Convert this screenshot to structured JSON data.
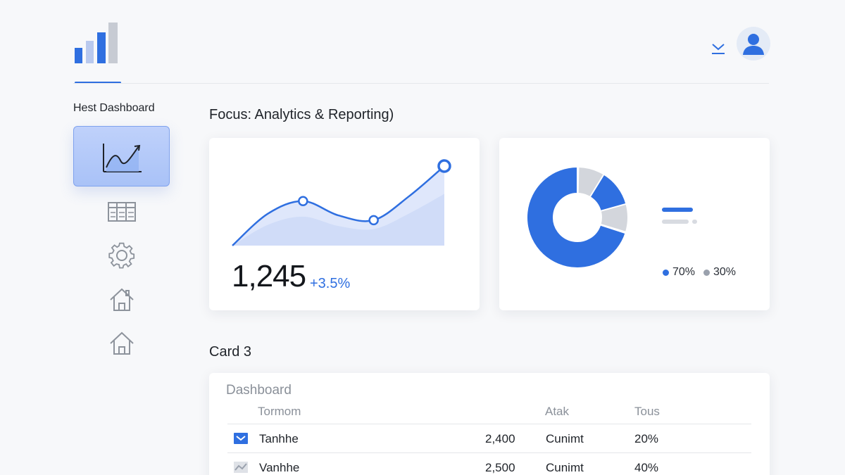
{
  "header": {
    "logo_icon": "bar-chart-logo-icon",
    "dropdown_icon": "chevron-down-icon",
    "avatar_icon": "user-avatar-icon",
    "accent_color": "#2f6fe0"
  },
  "sidebar": {
    "title": "Hest Dashboard",
    "items": [
      {
        "icon": "analytics-chart-icon",
        "active": true
      },
      {
        "icon": "table-grid-icon",
        "active": false
      },
      {
        "icon": "gear-icon",
        "active": false
      },
      {
        "icon": "home-icon",
        "active": false
      },
      {
        "icon": "home-icon",
        "active": false
      }
    ]
  },
  "main": {
    "section_title": "Focus: Analytics & Reporting)",
    "kpi_card": {
      "value": "1,245",
      "change": "+3.5%"
    },
    "donut_card": {
      "legend": [
        {
          "label": "70%",
          "color": "#2f6fe0"
        },
        {
          "label": "30%",
          "color": "#9aa1ad"
        }
      ]
    },
    "card3": {
      "title": "Card 3",
      "table_title": "Dashboard",
      "columns": [
        "Tormom",
        "Atak",
        "Tous"
      ],
      "rows": [
        {
          "icon": "checkbox-checked-icon",
          "name": "Tanhhe",
          "value": "2,400",
          "status": "Cunimt",
          "percent": "20%"
        },
        {
          "icon": "trend-chart-icon",
          "name": "Vanhhe",
          "value": "2,500",
          "status": "Cunimt",
          "percent": "40%"
        }
      ]
    }
  },
  "chart_data": [
    {
      "type": "area",
      "title": "",
      "xlabel": "",
      "ylabel": "",
      "series": [
        {
          "values": [
            0,
            40,
            56,
            38,
            32,
            62,
            100
          ]
        }
      ],
      "highlighted_points": [
        {
          "index": 2,
          "value": 56
        },
        {
          "index": 4,
          "value": 32
        },
        {
          "index": 6,
          "value": 100
        }
      ]
    },
    {
      "type": "pie",
      "title": "",
      "slices": [
        {
          "label": "70%",
          "value": 70,
          "color": "#2f6fe0"
        },
        {
          "label": "30%",
          "value": 30,
          "color": "#d3d6dc"
        }
      ]
    }
  ]
}
